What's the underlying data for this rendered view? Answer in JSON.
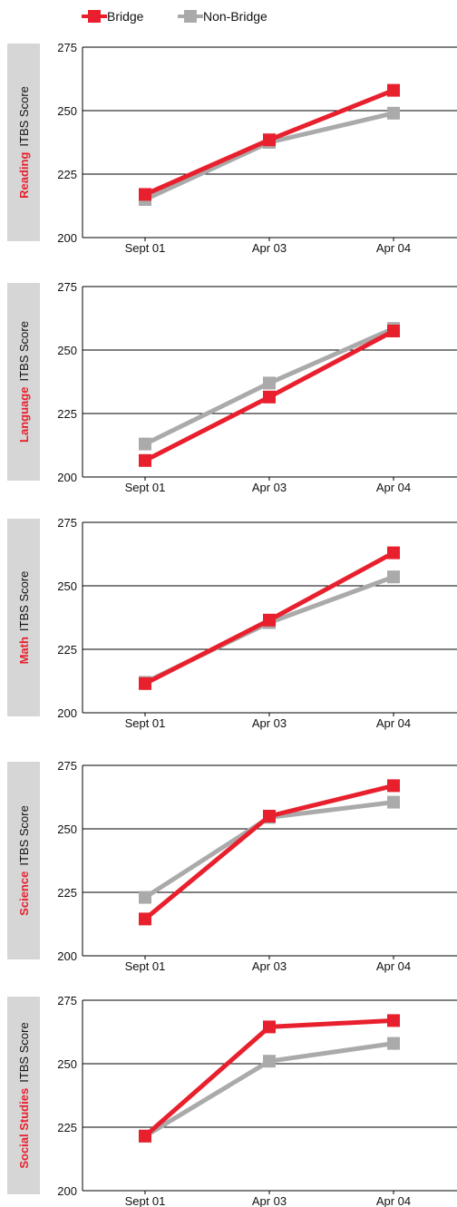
{
  "legend": {
    "bridge": "Bridge",
    "non_bridge": "Non-Bridge"
  },
  "colors": {
    "bridge": "#e8202e",
    "non_bridge": "#aaaaaa",
    "side_panel": "#d6d6d6"
  },
  "chart_data": [
    {
      "type": "line",
      "subject": "Reading",
      "ylabel": "ITBS Score",
      "categories": [
        "Sept 01",
        "Apr 03",
        "Apr 04"
      ],
      "ylim": [
        200,
        275
      ],
      "yticks": [
        200,
        225,
        250,
        275
      ],
      "series": [
        {
          "name": "Bridge",
          "values": [
            217,
            238.5,
            258
          ]
        },
        {
          "name": "Non-Bridge",
          "values": [
            215,
            237.5,
            249
          ]
        }
      ]
    },
    {
      "type": "line",
      "subject": "Language",
      "ylabel": "ITBS Score",
      "categories": [
        "Sept 01",
        "Apr 03",
        "Apr 04"
      ],
      "ylim": [
        200,
        275
      ],
      "yticks": [
        200,
        225,
        250,
        275
      ],
      "series": [
        {
          "name": "Bridge",
          "values": [
            206.5,
            231.5,
            257.5
          ]
        },
        {
          "name": "Non-Bridge",
          "values": [
            213,
            237,
            258.5
          ]
        }
      ]
    },
    {
      "type": "line",
      "subject": "Math",
      "ylabel": "ITBS Score",
      "categories": [
        "Sept 01",
        "Apr 03",
        "Apr 04"
      ],
      "ylim": [
        200,
        275
      ],
      "yticks": [
        200,
        225,
        250,
        275
      ],
      "series": [
        {
          "name": "Bridge",
          "values": [
            211.5,
            236.5,
            263
          ]
        },
        {
          "name": "Non-Bridge",
          "values": [
            212,
            235.5,
            253.5
          ]
        }
      ]
    },
    {
      "type": "line",
      "subject": "Science",
      "ylabel": "ITBS Score",
      "categories": [
        "Sept 01",
        "Apr 03",
        "Apr 04"
      ],
      "ylim": [
        200,
        275
      ],
      "yticks": [
        200,
        225,
        250,
        275
      ],
      "series": [
        {
          "name": "Bridge",
          "values": [
            214.5,
            255,
            267
          ]
        },
        {
          "name": "Non-Bridge",
          "values": [
            223,
            254.5,
            260.5
          ]
        }
      ]
    },
    {
      "type": "line",
      "subject": "Social Studies",
      "ylabel": "ITBS Score",
      "categories": [
        "Sept 01",
        "Apr 03",
        "Apr 04"
      ],
      "ylim": [
        200,
        275
      ],
      "yticks": [
        200,
        225,
        250,
        275
      ],
      "series": [
        {
          "name": "Bridge",
          "values": [
            221.5,
            264.5,
            267
          ]
        },
        {
          "name": "Non-Bridge",
          "values": [
            221.5,
            251,
            258
          ]
        }
      ]
    }
  ]
}
